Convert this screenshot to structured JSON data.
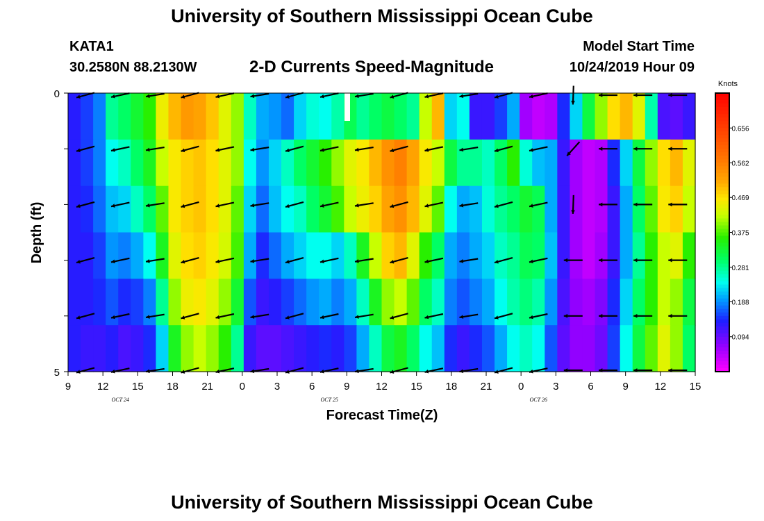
{
  "header": {
    "title": "University of Southern Mississippi Ocean Cube",
    "station": "KATA1",
    "coords": "30.2580N 88.2130W",
    "subtitle": "2-D Currents Speed-Magnitude",
    "model_start_label": "Model Start Time",
    "model_start_value": "10/24/2019 Hour 09"
  },
  "footer": {
    "title": "University of Southern Mississippi Ocean Cube"
  },
  "chart_data": {
    "type": "heatmap",
    "title": "2-D Currents Speed-Magnitude",
    "xlabel": "Forecast Time(Z)",
    "ylabel": "Depth (ft)",
    "x_ticks": [
      "9",
      "12",
      "15",
      "18",
      "21",
      "0",
      "3",
      "6",
      "9",
      "12",
      "15",
      "18",
      "21",
      "0",
      "3",
      "6",
      "9",
      "12",
      "15"
    ],
    "date_labels": [
      {
        "label": "OCT 24",
        "after_tick": 2
      },
      {
        "label": "OCT 25",
        "after_tick": 8
      },
      {
        "label": "OCT 26",
        "after_tick": 14
      }
    ],
    "y_ticks": [
      "0",
      "5"
    ],
    "y_range": [
      0,
      5
    ],
    "colorbar": {
      "unit": "Knots",
      "min": 0,
      "max": 0.75,
      "ticks": [
        "0.656",
        "0.562",
        "0.469",
        "0.375",
        "0.281",
        "0.188",
        "0.094"
      ]
    },
    "speed_knots": [
      [
        0.13,
        0.15,
        0.18,
        0.28,
        0.3,
        0.33,
        0.36,
        0.45,
        0.5,
        0.53,
        0.52,
        0.49,
        0.44,
        0.4,
        0.26,
        0.2,
        0.19,
        0.17,
        0.22,
        0.25,
        0.24,
        0.27,
        0.31,
        0.28,
        0.3,
        0.32,
        0.3,
        0.28,
        0.42,
        0.5,
        0.22,
        0.24,
        0.12,
        0.12,
        0.15,
        0.2,
        0.06,
        0.04,
        0.05,
        0.14,
        0.22,
        0.32,
        0.4,
        0.47,
        0.5,
        0.44,
        0.27,
        0.11,
        0.1,
        0.12
      ],
      [
        0.13,
        0.15,
        0.18,
        0.24,
        0.26,
        0.3,
        0.34,
        0.42,
        0.46,
        0.48,
        0.49,
        0.47,
        0.44,
        0.4,
        0.24,
        0.19,
        0.22,
        0.26,
        0.3,
        0.33,
        0.36,
        0.4,
        0.44,
        0.46,
        0.5,
        0.54,
        0.56,
        0.52,
        0.46,
        0.42,
        0.32,
        0.28,
        0.28,
        0.26,
        0.3,
        0.36,
        0.25,
        0.21,
        0.2,
        0.12,
        0.06,
        0.04,
        0.05,
        0.14,
        0.22,
        0.32,
        0.4,
        0.47,
        0.5,
        0.44
      ],
      [
        0.13,
        0.14,
        0.17,
        0.21,
        0.22,
        0.26,
        0.3,
        0.38,
        0.46,
        0.48,
        0.49,
        0.47,
        0.44,
        0.38,
        0.22,
        0.17,
        0.21,
        0.24,
        0.26,
        0.3,
        0.33,
        0.37,
        0.42,
        0.45,
        0.48,
        0.52,
        0.54,
        0.5,
        0.44,
        0.38,
        0.24,
        0.2,
        0.21,
        0.25,
        0.28,
        0.3,
        0.33,
        0.31,
        0.2,
        0.12,
        0.06,
        0.04,
        0.05,
        0.12,
        0.2,
        0.3,
        0.38,
        0.46,
        0.48,
        0.42
      ],
      [
        0.13,
        0.13,
        0.15,
        0.19,
        0.18,
        0.2,
        0.24,
        0.34,
        0.44,
        0.47,
        0.48,
        0.46,
        0.43,
        0.37,
        0.2,
        0.14,
        0.17,
        0.2,
        0.22,
        0.24,
        0.24,
        0.22,
        0.26,
        0.34,
        0.42,
        0.48,
        0.5,
        0.44,
        0.36,
        0.3,
        0.2,
        0.18,
        0.2,
        0.22,
        0.26,
        0.28,
        0.31,
        0.3,
        0.21,
        0.12,
        0.06,
        0.04,
        0.06,
        0.12,
        0.2,
        0.28,
        0.36,
        0.42,
        0.44,
        0.36
      ],
      [
        0.13,
        0.13,
        0.14,
        0.16,
        0.14,
        0.15,
        0.18,
        0.28,
        0.4,
        0.45,
        0.46,
        0.44,
        0.4,
        0.33,
        0.16,
        0.12,
        0.13,
        0.15,
        0.17,
        0.19,
        0.2,
        0.18,
        0.2,
        0.26,
        0.34,
        0.4,
        0.42,
        0.38,
        0.3,
        0.26,
        0.18,
        0.16,
        0.18,
        0.2,
        0.24,
        0.27,
        0.29,
        0.27,
        0.19,
        0.11,
        0.07,
        0.06,
        0.08,
        0.14,
        0.22,
        0.3,
        0.36,
        0.42,
        0.4,
        0.32
      ],
      [
        0.13,
        0.12,
        0.12,
        0.13,
        0.11,
        0.12,
        0.14,
        0.22,
        0.34,
        0.4,
        0.42,
        0.4,
        0.36,
        0.28,
        0.12,
        0.1,
        0.1,
        0.11,
        0.12,
        0.13,
        0.14,
        0.13,
        0.15,
        0.2,
        0.26,
        0.32,
        0.34,
        0.3,
        0.24,
        0.21,
        0.14,
        0.12,
        0.14,
        0.16,
        0.2,
        0.24,
        0.26,
        0.24,
        0.16,
        0.1,
        0.07,
        0.07,
        0.09,
        0.15,
        0.24,
        0.32,
        0.38,
        0.44,
        0.4,
        0.3
      ]
    ]
  }
}
